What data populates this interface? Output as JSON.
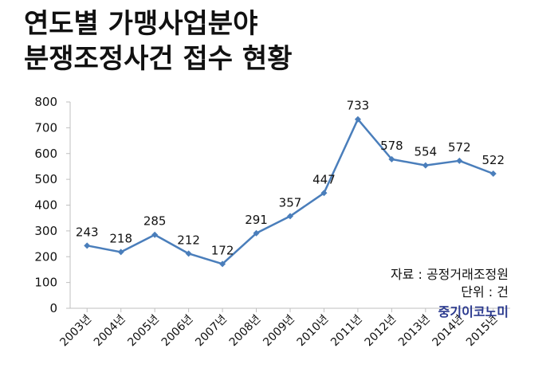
{
  "title": {
    "line1": "연도별 가맹사업분야",
    "line2": "분쟁조정사건 접수 현황"
  },
  "source": "자료 : 공정거래조정원",
  "unit": "단위 : 건",
  "logo": "중기이코노미",
  "colors": {
    "line": "#4a7ebb",
    "axis": "#bfbfbf",
    "text": "#111111",
    "logo": "#2b3a8f"
  },
  "chart_data": {
    "type": "line",
    "categories": [
      "2003년",
      "2004년",
      "2005년",
      "2006년",
      "2007년",
      "2008년",
      "2009년",
      "2010년",
      "2011년",
      "2012년",
      "2013년",
      "2014년",
      "2015년"
    ],
    "series": [
      {
        "values": [
          243,
          218,
          285,
          212,
          172,
          291,
          357,
          447,
          733,
          578,
          554,
          572,
          522
        ]
      }
    ],
    "ylim": [
      0,
      800
    ],
    "yticks": [
      0,
      100,
      200,
      300,
      400,
      500,
      600,
      700,
      800
    ],
    "grid": false,
    "legend": "none",
    "data_labels": true
  }
}
